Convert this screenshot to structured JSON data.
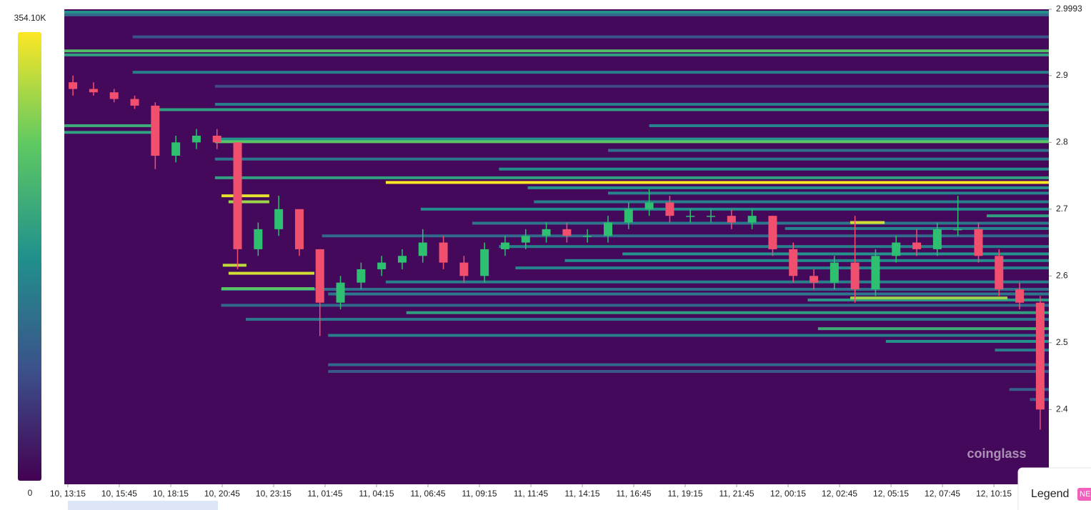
{
  "chart_data": {
    "type": "heatmap-candlestick",
    "watermark": "coinglass",
    "legend_button": "Legend",
    "badge": "NE",
    "clim": [
      0,
      354.1
    ],
    "colorbar_ticks": [
      0,
      {
        "value": 354.1,
        "label": "354.10K"
      }
    ],
    "ylim": [
      2.288,
      2.9993
    ],
    "yticks": [
      2.4,
      2.5,
      2.6,
      2.7,
      2.8,
      2.9,
      2.9993
    ],
    "xlim": [
      13.08,
      60.92
    ],
    "xticks": [
      {
        "value": 13.25,
        "label": "10, 13:15"
      },
      {
        "value": 15.75,
        "label": "10, 15:45"
      },
      {
        "value": 18.25,
        "label": "10, 18:15"
      },
      {
        "value": 20.75,
        "label": "10, 20:45"
      },
      {
        "value": 23.25,
        "label": "10, 23:15"
      },
      {
        "value": 25.75,
        "label": "11, 01:45"
      },
      {
        "value": 28.25,
        "label": "11, 04:15"
      },
      {
        "value": 30.75,
        "label": "11, 06:45"
      },
      {
        "value": 33.25,
        "label": "11, 09:15"
      },
      {
        "value": 35.75,
        "label": "11, 11:45"
      },
      {
        "value": 38.25,
        "label": "11, 14:15"
      },
      {
        "value": 40.75,
        "label": "11, 16:45"
      },
      {
        "value": 43.25,
        "label": "11, 19:15"
      },
      {
        "value": 45.75,
        "label": "11, 21:45"
      },
      {
        "value": 48.25,
        "label": "12, 00:15"
      },
      {
        "value": 50.75,
        "label": "12, 02:45"
      },
      {
        "value": 53.25,
        "label": "12, 05:15"
      },
      {
        "value": 55.75,
        "label": "12, 07:45"
      },
      {
        "value": 58.25,
        "label": "12, 10:15"
      }
    ],
    "up_color": "#2fbf71",
    "down_color": "#f0506e",
    "x": [
      13.5,
      14.5,
      15.5,
      16.5,
      17.5,
      18.5,
      19.5,
      20.5,
      21.5,
      22.5,
      23.5,
      24.5,
      25.5,
      26.5,
      27.5,
      28.5,
      29.5,
      30.5,
      31.5,
      32.5,
      33.5,
      34.5,
      35.5,
      36.5,
      37.5,
      38.5,
      39.5,
      40.5,
      41.5,
      42.5,
      43.5,
      44.5,
      45.5,
      46.5,
      47.5,
      48.5,
      49.5,
      50.5,
      51.5,
      52.5,
      53.5,
      54.5,
      55.5,
      56.5,
      57.5,
      58.5,
      59.5,
      60.5
    ],
    "open": [
      2.89,
      2.88,
      2.875,
      2.865,
      2.855,
      2.78,
      2.8,
      2.81,
      2.8,
      2.64,
      2.67,
      2.7,
      2.64,
      2.56,
      2.59,
      2.61,
      2.62,
      2.63,
      2.65,
      2.62,
      2.6,
      2.64,
      2.65,
      2.66,
      2.67,
      2.66,
      2.66,
      2.68,
      2.7,
      2.71,
      2.69,
      2.69,
      2.69,
      2.68,
      2.69,
      2.64,
      2.6,
      2.59,
      2.62,
      2.58,
      2.63,
      2.65,
      2.64,
      2.67,
      2.67,
      2.63,
      2.58,
      2.56
    ],
    "high": [
      2.9,
      2.89,
      2.88,
      2.87,
      2.86,
      2.81,
      2.82,
      2.82,
      2.8,
      2.68,
      2.72,
      2.7,
      2.64,
      2.6,
      2.62,
      2.63,
      2.64,
      2.67,
      2.66,
      2.63,
      2.65,
      2.66,
      2.67,
      2.68,
      2.68,
      2.67,
      2.69,
      2.71,
      2.73,
      2.72,
      2.7,
      2.7,
      2.7,
      2.7,
      2.69,
      2.65,
      2.61,
      2.63,
      2.69,
      2.64,
      2.66,
      2.67,
      2.68,
      2.72,
      2.68,
      2.64,
      2.59,
      2.57
    ],
    "low": [
      2.87,
      2.87,
      2.86,
      2.85,
      2.76,
      2.77,
      2.79,
      2.79,
      2.61,
      2.63,
      2.66,
      2.63,
      2.51,
      2.55,
      2.58,
      2.6,
      2.61,
      2.62,
      2.61,
      2.59,
      2.59,
      2.63,
      2.64,
      2.65,
      2.65,
      2.65,
      2.65,
      2.67,
      2.69,
      2.68,
      2.68,
      2.68,
      2.67,
      2.67,
      2.63,
      2.59,
      2.58,
      2.58,
      2.56,
      2.57,
      2.62,
      2.63,
      2.63,
      2.66,
      2.62,
      2.57,
      2.55,
      2.37
    ],
    "close": [
      2.88,
      2.875,
      2.865,
      2.855,
      2.78,
      2.8,
      2.81,
      2.8,
      2.64,
      2.67,
      2.7,
      2.64,
      2.56,
      2.59,
      2.61,
      2.62,
      2.63,
      2.65,
      2.62,
      2.6,
      2.64,
      2.65,
      2.66,
      2.67,
      2.66,
      2.66,
      2.68,
      2.7,
      2.71,
      2.69,
      2.69,
      2.69,
      2.68,
      2.69,
      2.64,
      2.6,
      2.59,
      2.62,
      2.58,
      2.63,
      2.65,
      2.64,
      2.67,
      2.67,
      2.63,
      2.58,
      2.56,
      2.4
    ],
    "heatmap": [
      {
        "price": 2.995,
        "x0": 13.08,
        "value": 180
      },
      {
        "price": 2.991,
        "x0": 13.08,
        "value": 120
      },
      {
        "price": 2.958,
        "x0": 16.4,
        "value": 90
      },
      {
        "price": 2.937,
        "x0": 13.08,
        "value": 250
      },
      {
        "price": 2.931,
        "x0": 13.08,
        "value": 200
      },
      {
        "price": 2.905,
        "x0": 16.4,
        "value": 150
      },
      {
        "price": 2.884,
        "x0": 20.4,
        "value": 80
      },
      {
        "price": 2.857,
        "x0": 20.4,
        "value": 150
      },
      {
        "price": 2.849,
        "x0": 17.35,
        "value": 200
      },
      {
        "price": 2.825,
        "x0": 41.5,
        "value": 160
      },
      {
        "price": 2.805,
        "x0": 20.4,
        "value": 180
      },
      {
        "price": 2.801,
        "x0": 20.4,
        "value": 260
      },
      {
        "price": 2.788,
        "x0": 39.5,
        "value": 130
      },
      {
        "price": 2.775,
        "x0": 20.4,
        "value": 140
      },
      {
        "price": 2.76,
        "x0": 34.2,
        "value": 170
      },
      {
        "price": 2.747,
        "x0": 20.4,
        "value": 200
      },
      {
        "price": 2.74,
        "x0": 28.7,
        "value": 354
      },
      {
        "price": 2.732,
        "x0": 35.6,
        "value": 180
      },
      {
        "price": 2.724,
        "x0": 39.5,
        "value": 160
      },
      {
        "price": 2.711,
        "x0": 35.9,
        "value": 150
      },
      {
        "price": 2.7,
        "x0": 30.4,
        "value": 170
      },
      {
        "price": 2.69,
        "x0": 57.9,
        "value": 200
      },
      {
        "price": 2.679,
        "x0": 32.9,
        "value": 140
      },
      {
        "price": 2.671,
        "x0": 48.1,
        "value": 160
      },
      {
        "price": 2.66,
        "x0": 25.6,
        "value": 120
      },
      {
        "price": 2.644,
        "x0": 34.2,
        "value": 150
      },
      {
        "price": 2.633,
        "x0": 40.2,
        "value": 180
      },
      {
        "price": 2.623,
        "x0": 37.4,
        "value": 170
      },
      {
        "price": 2.612,
        "x0": 35.0,
        "value": 160
      },
      {
        "price": 2.591,
        "x0": 28.7,
        "value": 150
      },
      {
        "price": 2.58,
        "x0": 20.7,
        "value": 130
      },
      {
        "price": 2.573,
        "x0": 25.9,
        "value": 140
      },
      {
        "price": 2.564,
        "x0": 49.2,
        "value": 190
      },
      {
        "price": 2.556,
        "x0": 20.7,
        "value": 120
      },
      {
        "price": 2.545,
        "x0": 29.7,
        "value": 200
      },
      {
        "price": 2.535,
        "x0": 21.9,
        "value": 140
      },
      {
        "price": 2.521,
        "x0": 49.7,
        "value": 220
      },
      {
        "price": 2.511,
        "x0": 25.9,
        "value": 150
      },
      {
        "price": 2.502,
        "x0": 53.0,
        "value": 180
      },
      {
        "price": 2.489,
        "x0": 58.3,
        "value": 150
      },
      {
        "price": 2.467,
        "x0": 25.9,
        "value": 120
      },
      {
        "price": 2.457,
        "x0": 25.9,
        "value": 100
      },
      {
        "price": 2.43,
        "x0": 59.0,
        "value": 110
      },
      {
        "price": 2.415,
        "x0": 60.0,
        "value": 100
      },
      {
        "price": 2.825,
        "x0": 13.08,
        "x1": 17.35,
        "value": 220
      },
      {
        "price": 2.815,
        "x0": 13.08,
        "x1": 17.35,
        "value": 200
      },
      {
        "price": 2.72,
        "x0": 20.72,
        "x1": 23.04,
        "value": 340
      },
      {
        "price": 2.711,
        "x0": 21.06,
        "x1": 23.04,
        "value": 300
      },
      {
        "price": 2.616,
        "x0": 20.78,
        "x1": 21.93,
        "value": 320
      },
      {
        "price": 2.604,
        "x0": 21.06,
        "x1": 25.23,
        "value": 330
      },
      {
        "price": 2.581,
        "x0": 20.72,
        "x1": 25.23,
        "value": 260
      },
      {
        "price": 2.567,
        "x0": 51.27,
        "x1": 58.91,
        "value": 300
      },
      {
        "price": 2.68,
        "x0": 51.27,
        "x1": 52.94,
        "value": 330
      }
    ]
  }
}
